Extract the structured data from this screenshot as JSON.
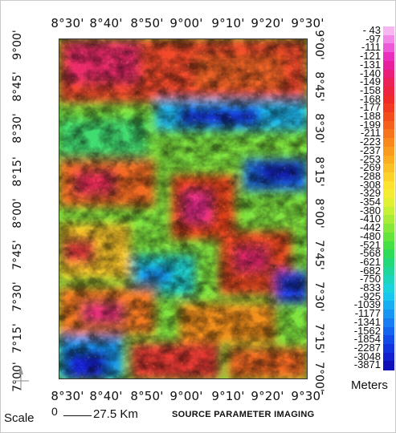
{
  "map": {
    "title": "SOURCE PARAMETER IMAGING",
    "top_ticks": [
      "8°30'",
      "8°40'",
      "8°50'",
      "9°00'",
      "9°10'",
      "9°20'",
      "9°30'"
    ],
    "bottom_ticks": [
      "8°30'",
      "8°40'",
      "8°50'",
      "9°00'",
      "9°10'",
      "9°20'",
      "9°30'"
    ],
    "left_ticks": [
      "9°00'",
      "8°45'",
      "8°30'",
      "8°15'",
      "8°00'",
      "7°45'",
      "7°30'",
      "7°15'",
      "7°00'"
    ],
    "right_ticks": [
      "9°00'",
      "8°45'",
      "8°30'",
      "8°15'",
      "8°00'",
      "7°45'",
      "7°30'",
      "7°15'",
      "7°00'"
    ],
    "legend_units": "Meters",
    "scale_label": "Scale",
    "scale_zero": "0",
    "scale_distance": "27.5 Km",
    "colorbar": [
      {
        "label": "- 43",
        "color": "#f7b6ef"
      },
      {
        "label": "-97",
        "color": "#f08ae6"
      },
      {
        "label": "-111",
        "color": "#ec5ad6"
      },
      {
        "label": "-121",
        "color": "#e92fbb"
      },
      {
        "label": "-131",
        "color": "#e8209d"
      },
      {
        "label": "-140",
        "color": "#ea1f7a"
      },
      {
        "label": "-149",
        "color": "#ec2159"
      },
      {
        "label": "-158",
        "color": "#ee2340"
      },
      {
        "label": "-168",
        "color": "#f02a2a"
      },
      {
        "label": "-177",
        "color": "#f23a22"
      },
      {
        "label": "-188",
        "color": "#f34d1e"
      },
      {
        "label": "-199",
        "color": "#f5601c"
      },
      {
        "label": "-211",
        "color": "#f6741c"
      },
      {
        "label": "-223",
        "color": "#f8881d"
      },
      {
        "label": "-237",
        "color": "#f99b1f"
      },
      {
        "label": "-253",
        "color": "#fbad22"
      },
      {
        "label": "-269",
        "color": "#fcc027"
      },
      {
        "label": "-288",
        "color": "#fdd22b"
      },
      {
        "label": "-308",
        "color": "#fde230"
      },
      {
        "label": "-329",
        "color": "#f3ec33"
      },
      {
        "label": "-354",
        "color": "#dff035"
      },
      {
        "label": "-380",
        "color": "#c6ef37"
      },
      {
        "label": "-410",
        "color": "#a8ec38"
      },
      {
        "label": "-442",
        "color": "#88e83a"
      },
      {
        "label": "-480",
        "color": "#66e43e"
      },
      {
        "label": "-521",
        "color": "#46e045"
      },
      {
        "label": "-568",
        "color": "#2edc5a"
      },
      {
        "label": "-621",
        "color": "#22d879"
      },
      {
        "label": "-682",
        "color": "#1fd69b"
      },
      {
        "label": "-750",
        "color": "#1dd5bd"
      },
      {
        "label": "-833",
        "color": "#1bd3dc"
      },
      {
        "label": "-925",
        "color": "#19c6ee"
      },
      {
        "label": "-1039",
        "color": "#18aff2"
      },
      {
        "label": "-1177",
        "color": "#1796f3"
      },
      {
        "label": "-1341",
        "color": "#167df2"
      },
      {
        "label": "-1562",
        "color": "#1564ee"
      },
      {
        "label": "-1854",
        "color": "#144be8"
      },
      {
        "label": "-2287",
        "color": "#1334dd"
      },
      {
        "label": "-3048",
        "color": "#1220cf"
      },
      {
        "label": "-3871",
        "color": "#1010b8"
      }
    ]
  }
}
